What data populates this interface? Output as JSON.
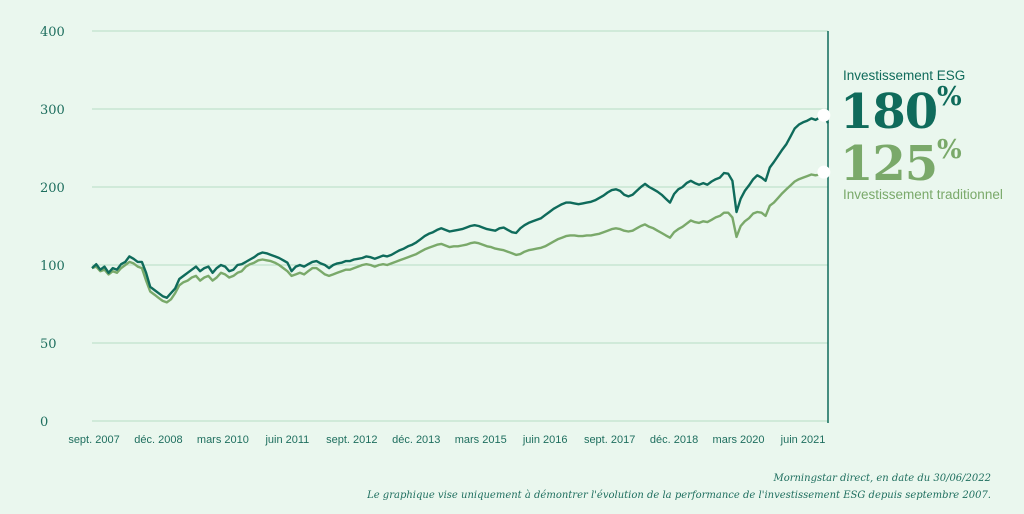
{
  "chart_data": {
    "type": "line",
    "y_ticks": [
      "400",
      "300",
      "200",
      "100",
      "50",
      "0"
    ],
    "x_ticks": [
      "sept. 2007",
      "déc. 2008",
      "mars 2010",
      "juin 2011",
      "sept. 2012",
      "déc. 2013",
      "mars 2015",
      "juin 2016",
      "sept. 2017",
      "déc. 2018",
      "mars 2020",
      "juin 2021"
    ],
    "grid": true,
    "series": [
      {
        "name": "Investissement ESG",
        "color": "#0f6b5b",
        "values": [
          98,
          101,
          97,
          99,
          95,
          98,
          97,
          101,
          104,
          111,
          108,
          104,
          104,
          95,
          86,
          84,
          82,
          80,
          79,
          82,
          85,
          91,
          93,
          95,
          97,
          99,
          96,
          98,
          99,
          95,
          98,
          100,
          99,
          96,
          97,
          100,
          101,
          104,
          107,
          110,
          114,
          116,
          115,
          113,
          111,
          109,
          106,
          103,
          96,
          99,
          100,
          99,
          101,
          104,
          105,
          102,
          100,
          98,
          100,
          102,
          103,
          105,
          105,
          107,
          108,
          109,
          111,
          110,
          108,
          110,
          112,
          111,
          113,
          116,
          119,
          121,
          124,
          126,
          129,
          133,
          137,
          140,
          142,
          145,
          147,
          145,
          143,
          144,
          145,
          146,
          148,
          150,
          151,
          150,
          148,
          146,
          145,
          144,
          147,
          148,
          145,
          142,
          141,
          147,
          151,
          154,
          156,
          158,
          160,
          164,
          168,
          172,
          175,
          178,
          180,
          180,
          179,
          178,
          179,
          180,
          181,
          183,
          186,
          189,
          193,
          196,
          197,
          195,
          190,
          188,
          190,
          195,
          200,
          204,
          200,
          197,
          194,
          190,
          185,
          180,
          191,
          197,
          200,
          205,
          208,
          205,
          203,
          205,
          203,
          207,
          210,
          212,
          218,
          217,
          208,
          168,
          185,
          195,
          202,
          210,
          215,
          212,
          208,
          225,
          232,
          240,
          248,
          255,
          265,
          275,
          280,
          283,
          285,
          288,
          286,
          289,
          292,
          282
        ]
      },
      {
        "name": "Investissement traditionnel",
        "color": "#7aa96a",
        "values": [
          98,
          99,
          96,
          97,
          94,
          96,
          95,
          98,
          100,
          104,
          102,
          99,
          98,
          90,
          83,
          81,
          79,
          77,
          76,
          78,
          82,
          87,
          89,
          90,
          92,
          93,
          90,
          92,
          93,
          90,
          92,
          95,
          94,
          92,
          93,
          95,
          96,
          99,
          101,
          103,
          106,
          107,
          106,
          105,
          103,
          100,
          98,
          96,
          93,
          94,
          95,
          94,
          96,
          98,
          98,
          96,
          94,
          93,
          94,
          95,
          96,
          97,
          97,
          98,
          99,
          100,
          101,
          100,
          99,
          100,
          101,
          100,
          102,
          104,
          106,
          108,
          110,
          112,
          114,
          117,
          120,
          122,
          124,
          126,
          127,
          125,
          123,
          124,
          124,
          125,
          126,
          128,
          129,
          128,
          126,
          124,
          123,
          121,
          120,
          119,
          117,
          115,
          113,
          114,
          117,
          119,
          120,
          121,
          122,
          124,
          127,
          130,
          133,
          135,
          137,
          138,
          138,
          137,
          137,
          138,
          138,
          139,
          140,
          142,
          144,
          146,
          147,
          146,
          144,
          143,
          144,
          147,
          150,
          152,
          149,
          147,
          144,
          141,
          138,
          135,
          142,
          146,
          149,
          153,
          157,
          155,
          154,
          156,
          155,
          158,
          161,
          163,
          167,
          167,
          161,
          136,
          150,
          156,
          160,
          166,
          168,
          167,
          163,
          176,
          180,
          186,
          192,
          197,
          202,
          207,
          210,
          212,
          214,
          216,
          215,
          216,
          219,
          222
        ]
      }
    ],
    "annotations": {
      "esg_label": "Investissement ESG",
      "esg_value": "180",
      "esg_unit": "%",
      "trad_value": "125",
      "trad_unit": "%",
      "trad_label": "Investissement traditionnel"
    }
  },
  "footnotes": {
    "source": "Morningstar direct, en date du  30/06/2022",
    "disclaimer": "Le graphique vise uniquement à démontrer l'évolution de la performance de l'investissement ESG depuis septembre 2007."
  }
}
